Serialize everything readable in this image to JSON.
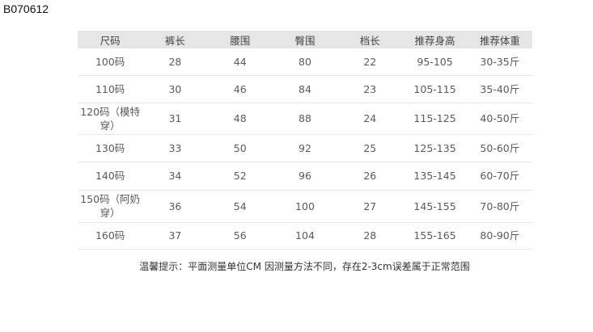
{
  "product_code": "B070612",
  "table": {
    "headers": [
      "尺码",
      "裤长",
      "腰围",
      "臀围",
      "档长",
      "推荐身高",
      "推荐体重"
    ],
    "rows": [
      [
        "100码",
        "28",
        "44",
        "80",
        "22",
        "95-105",
        "30-35斤"
      ],
      [
        "110码",
        "30",
        "46",
        "84",
        "23",
        "105-115",
        "35-40斤"
      ],
      [
        "120码（模特穿）",
        "31",
        "48",
        "88",
        "24",
        "115-125",
        "40-50斤"
      ],
      [
        "130码",
        "33",
        "50",
        "92",
        "25",
        "125-135",
        "50-60斤"
      ],
      [
        "140码",
        "34",
        "52",
        "96",
        "26",
        "135-145",
        "60-70斤"
      ],
      [
        "150码（阿奶穿）",
        "36",
        "54",
        "100",
        "27",
        "145-155",
        "70-80斤"
      ],
      [
        "160码",
        "37",
        "56",
        "104",
        "28",
        "155-165",
        "80-90斤"
      ]
    ]
  },
  "note": "温馨提示：平面测量单位CM 因测量方法不同，存在2-3cm误差属于正常范围"
}
